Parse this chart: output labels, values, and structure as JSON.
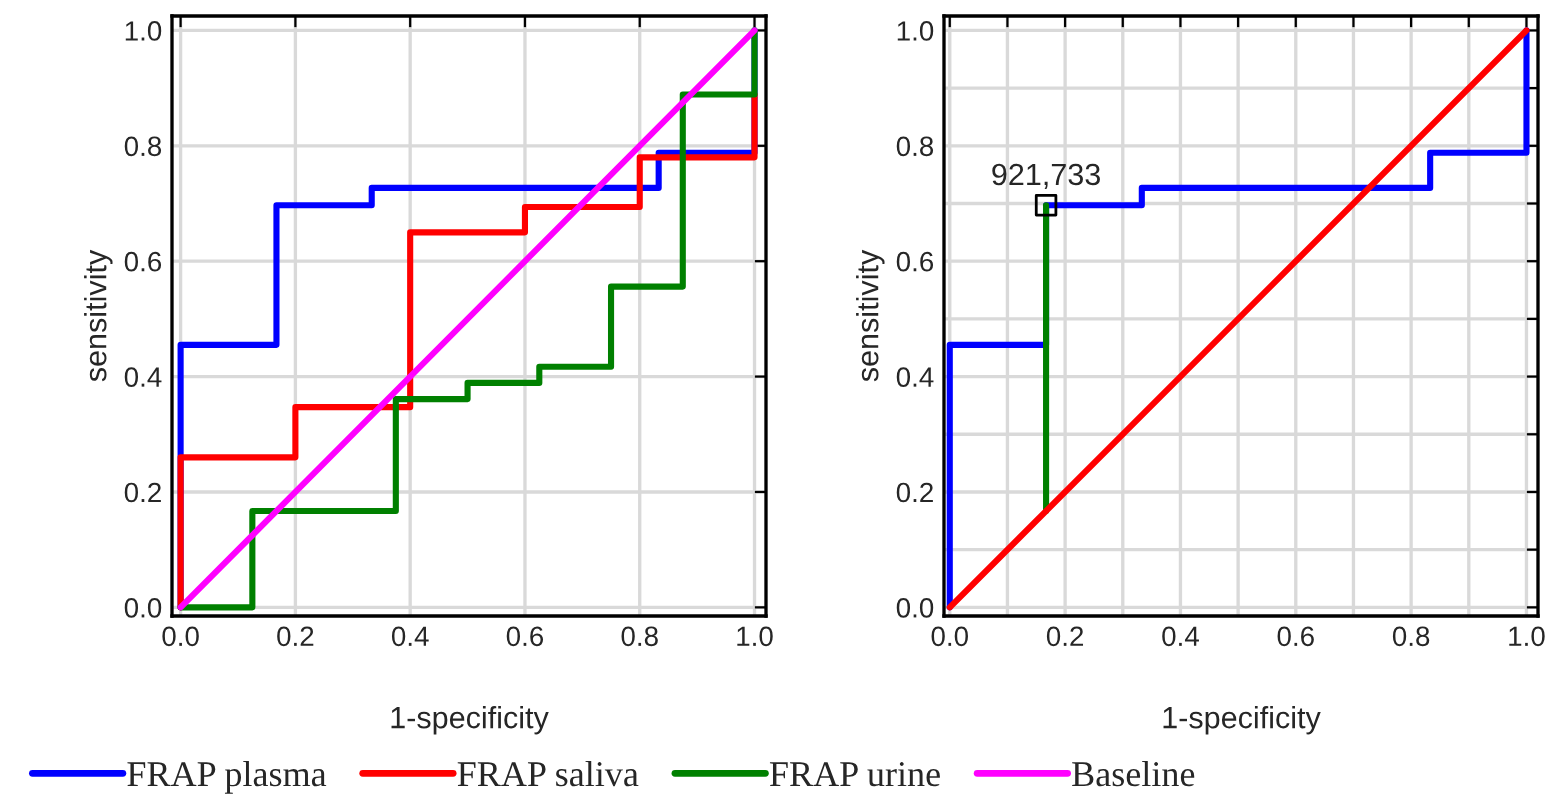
{
  "chart_data": [
    {
      "type": "line",
      "xlabel": "1-specificity",
      "ylabel": "sensitivity",
      "xlim": [
        -0.015,
        1.02
      ],
      "ylim": [
        -0.015,
        1.025
      ],
      "xticks": [
        {
          "value": 0,
          "label": "0.0"
        },
        {
          "value": 0.2,
          "label": "0.2"
        },
        {
          "value": 0.4,
          "label": "0.4"
        },
        {
          "value": 0.6,
          "label": "0.6"
        },
        {
          "value": 0.8,
          "label": "0.8"
        },
        {
          "value": 1,
          "label": "1.0"
        }
      ],
      "yticks": [
        {
          "value": 0,
          "label": "0.0"
        },
        {
          "value": 0.2,
          "label": "0.2"
        },
        {
          "value": 0.4,
          "label": "0.4"
        },
        {
          "value": 0.6,
          "label": "0.6"
        },
        {
          "value": 0.8,
          "label": "0.8"
        },
        {
          "value": 1,
          "label": "1.0"
        }
      ],
      "grid": true,
      "legend": "bottom",
      "marker": "none",
      "series": [
        {
          "name": "FRAP plasma",
          "color": "#0000ff",
          "x": [
            0,
            0,
            0.167,
            0.167,
            0.333,
            0.333,
            0.833,
            0.833,
            1,
            1
          ],
          "values": [
            0,
            0.455,
            0.455,
            0.697,
            0.697,
            0.727,
            0.727,
            0.788,
            0.788,
            1
          ]
        },
        {
          "name": "FRAP saliva",
          "color": "#ff0000",
          "x": [
            0,
            0,
            0.2,
            0.2,
            0.4,
            0.4,
            0.6,
            0.6,
            0.8,
            0.8,
            1,
            1
          ],
          "values": [
            0,
            0.26,
            0.26,
            0.347,
            0.347,
            0.65,
            0.65,
            0.694,
            0.694,
            0.78,
            0.78,
            0.889
          ]
        },
        {
          "name": "FRAP urine",
          "color": "#008000",
          "x": [
            0,
            0.125,
            0.125,
            0.375,
            0.375,
            0.5,
            0.5,
            0.625,
            0.625,
            0.75,
            0.75,
            0.875,
            0.875,
            1,
            1
          ],
          "values": [
            0,
            0,
            0.167,
            0.167,
            0.361,
            0.361,
            0.389,
            0.389,
            0.417,
            0.417,
            0.556,
            0.556,
            0.889,
            0.889,
            1
          ]
        },
        {
          "name": "Baseline",
          "color": "#ff00ff",
          "x": [
            0,
            1
          ],
          "values": [
            0,
            1
          ]
        }
      ]
    },
    {
      "type": "line",
      "xlabel": "1-specificity",
      "ylabel": "sensitivity",
      "xlim": [
        -0.01,
        1.02
      ],
      "ylim": [
        -0.015,
        1.025
      ],
      "xticks": [
        {
          "value": 0,
          "label": "0.0"
        },
        {
          "value": 0.1,
          "label": null
        },
        {
          "value": 0.2,
          "label": "0.2"
        },
        {
          "value": 0.3,
          "label": null
        },
        {
          "value": 0.4,
          "label": "0.4"
        },
        {
          "value": 0.5,
          "label": null
        },
        {
          "value": 0.6,
          "label": "0.6"
        },
        {
          "value": 0.7,
          "label": null
        },
        {
          "value": 0.8,
          "label": "0.8"
        },
        {
          "value": 0.9,
          "label": null
        },
        {
          "value": 1,
          "label": "1.0"
        }
      ],
      "yticks": [
        {
          "value": 0,
          "label": "0.0"
        },
        {
          "value": 0.1,
          "label": null
        },
        {
          "value": 0.2,
          "label": "0.2"
        },
        {
          "value": 0.3,
          "label": null
        },
        {
          "value": 0.4,
          "label": "0.4"
        },
        {
          "value": 0.5,
          "label": null
        },
        {
          "value": 0.6,
          "label": "0.6"
        },
        {
          "value": 0.7,
          "label": null
        },
        {
          "value": 0.8,
          "label": "0.8"
        },
        {
          "value": 0.9,
          "label": null
        },
        {
          "value": 1,
          "label": "1.0"
        }
      ],
      "grid": true,
      "marker": "none",
      "annotations": [
        {
          "text": "921,733",
          "x": 0.167,
          "y": 0.697
        }
      ],
      "series": [
        {
          "color": "#0000ff",
          "x": [
            0,
            0,
            0.167,
            0.167,
            0.333,
            0.333,
            0.833,
            0.833,
            1,
            1
          ],
          "values": [
            0,
            0.455,
            0.455,
            0.697,
            0.697,
            0.727,
            0.727,
            0.788,
            0.788,
            1
          ]
        },
        {
          "color": "#008000",
          "x": [
            0.167,
            0.167
          ],
          "values": [
            0.167,
            0.697
          ]
        },
        {
          "color": "#ff0000",
          "x": [
            0,
            1
          ],
          "values": [
            0,
            1
          ]
        },
        {
          "type": "scatter",
          "marker": "square",
          "color": "#000000",
          "x": [
            0.167
          ],
          "values": [
            0.697
          ]
        }
      ]
    }
  ]
}
